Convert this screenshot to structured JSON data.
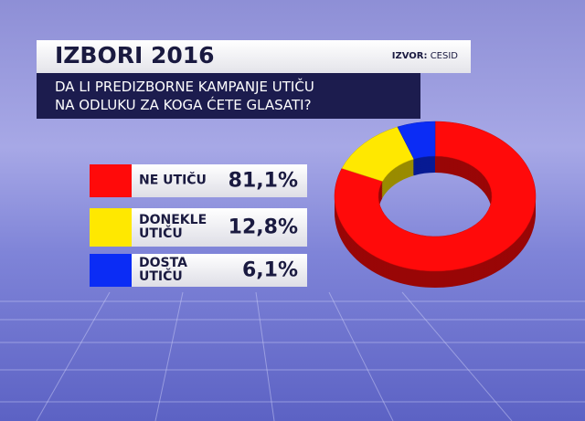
{
  "chart_data": {
    "type": "donut",
    "title": "IZBORI 2016",
    "subtitle": [
      "DA LI PREDIZBORNE KAMPANJE UTIČU",
      "NA ODLUKU ZA KOGA ĆETE GLASATI?"
    ],
    "source_label": "IZVOR:",
    "source": "CESID",
    "categories": [
      "NE UTIČU",
      "DONEKLE UTIČU",
      "DOSTA UTIČU"
    ],
    "values": [
      81.1,
      12.8,
      6.1
    ],
    "value_labels": [
      "81,1%",
      "12,8%",
      "6,1%"
    ],
    "colors": [
      "#ff0a0a",
      "#ffe800",
      "#0b2cf5"
    ]
  }
}
